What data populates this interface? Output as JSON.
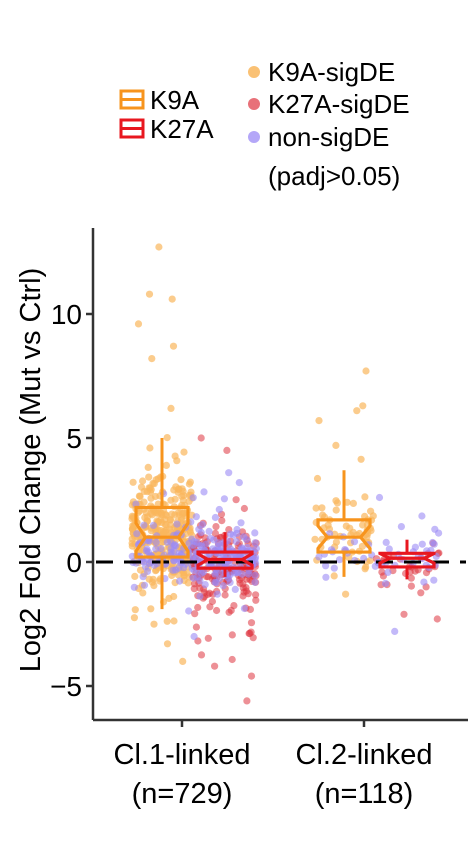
{
  "chart_data": {
    "type": "box-jitter",
    "title": "",
    "xlabel": "",
    "ylabel": "Log2 Fold Change (Mut vs Ctrl)",
    "ylim": [
      -6.4,
      13.4
    ],
    "yticks": [
      -5,
      0,
      5,
      10
    ],
    "reference_line": {
      "y": 0,
      "style": "dashed"
    },
    "categories": [
      {
        "line1": "Cl.1-linked",
        "line2": "(n=729)"
      },
      {
        "line1": "Cl.2-linked",
        "line2": "(n=118)"
      }
    ],
    "box_legend": [
      {
        "name": "K9A",
        "color": "#F7941D"
      },
      {
        "name": "K27A",
        "color": "#E8171F"
      }
    ],
    "point_legend": [
      {
        "name": "K9A-sigDE",
        "color": "#F9B65C"
      },
      {
        "name": "K27A-sigDE",
        "color": "#DE3440"
      },
      {
        "name": "non-sigDE",
        "sub": "(padj>0.05)",
        "color": "#9B8AF5"
      }
    ],
    "boxes": [
      {
        "category": 0,
        "series": "K9A",
        "min": -1.9,
        "q1": 0.2,
        "median": 1.0,
        "q3": 2.2,
        "max": 5.0
      },
      {
        "category": 0,
        "series": "K27A",
        "min": -0.6,
        "q1": -0.25,
        "median": 0.1,
        "q3": 0.4,
        "max": 1.2
      },
      {
        "category": 1,
        "series": "K9A",
        "min": -0.6,
        "q1": 0.4,
        "median": 1.0,
        "q3": 1.7,
        "max": 3.7
      },
      {
        "category": 1,
        "series": "K27A",
        "min": -0.7,
        "q1": -0.2,
        "median": 0.15,
        "q3": 0.35,
        "max": 0.9
      }
    ],
    "point_groups": [
      {
        "category": 0,
        "series": "K9A",
        "class": "K9A-sigDE",
        "n": 330,
        "center": 1.2,
        "spread": 1.8,
        "outliers": [
          12.7,
          10.8,
          10.6,
          9.6,
          8.7,
          8.2,
          -3.3
        ]
      },
      {
        "category": 0,
        "series": "K9A",
        "class": "non-sigDE",
        "n": 90,
        "center": 0.3,
        "spread": 0.8,
        "outliers": []
      },
      {
        "category": 0,
        "series": "K27A",
        "class": "K27A-sigDE",
        "n": 180,
        "center": -0.4,
        "spread": 1.4,
        "outliers": [
          5.0,
          4.5,
          -5.6,
          -4.6,
          -4.2
        ]
      },
      {
        "category": 0,
        "series": "K27A",
        "class": "non-sigDE",
        "n": 150,
        "center": 0.2,
        "spread": 1.1,
        "outliers": [
          3.6,
          3.2
        ]
      },
      {
        "category": 1,
        "series": "K9A",
        "class": "K9A-sigDE",
        "n": 62,
        "center": 1.1,
        "spread": 1.3,
        "outliers": [
          7.7,
          6.3,
          6.1,
          5.7,
          4.7
        ]
      },
      {
        "category": 1,
        "series": "K9A",
        "class": "non-sigDE",
        "n": 18,
        "center": 0.3,
        "spread": 0.6,
        "outliers": []
      },
      {
        "category": 1,
        "series": "K27A",
        "class": "K27A-sigDE",
        "n": 30,
        "center": -0.3,
        "spread": 0.9,
        "outliers": [
          -2.3
        ]
      },
      {
        "category": 1,
        "series": "K27A",
        "class": "non-sigDE",
        "n": 32,
        "center": 0.3,
        "spread": 0.9,
        "outliers": [
          2.6,
          -2.8
        ]
      }
    ]
  }
}
